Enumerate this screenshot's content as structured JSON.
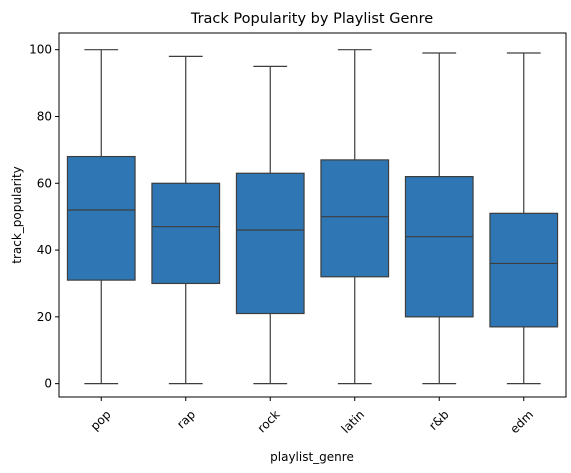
{
  "chart_data": {
    "type": "box",
    "title": "Track Popularity by Playlist Genre",
    "xlabel": "playlist_genre",
    "ylabel": "track_popularity",
    "ylim": [
      -4,
      105
    ],
    "yticks": [
      0,
      20,
      40,
      60,
      80,
      100
    ],
    "categories": [
      "pop",
      "rap",
      "rock",
      "latin",
      "r&b",
      "edm"
    ],
    "boxes": [
      {
        "min": 0,
        "q1": 31,
        "median": 52,
        "q3": 68,
        "max": 100
      },
      {
        "min": 0,
        "q1": 30,
        "median": 47,
        "q3": 60,
        "max": 98
      },
      {
        "min": 0,
        "q1": 21,
        "median": 46,
        "q3": 63,
        "max": 95
      },
      {
        "min": 0,
        "q1": 32,
        "median": 50,
        "q3": 67,
        "max": 100
      },
      {
        "min": 0,
        "q1": 20,
        "median": 44,
        "q3": 62,
        "max": 99
      },
      {
        "min": 0,
        "q1": 17,
        "median": 36,
        "q3": 51,
        "max": 99
      }
    ],
    "box_color": "#2f77b4",
    "line_color": "#3d3d3d",
    "grid": false,
    "xtick_rotation": 45
  }
}
